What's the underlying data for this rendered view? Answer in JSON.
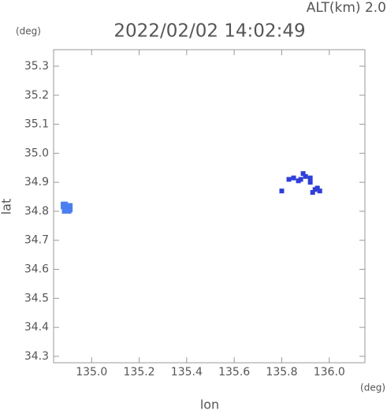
{
  "chart_data": {
    "type": "scatter",
    "title": "2022/02/02 14:02:49",
    "subtitle": "ALT(km) 2.0",
    "x_label": "lon",
    "y_label": "lat",
    "x_unit": "(deg)",
    "y_unit": "(deg)",
    "xlim": [
      134.84,
      136.15
    ],
    "ylim": [
      34.278,
      35.357
    ],
    "xticks": [
      {
        "value": 135.0,
        "label": "135.0"
      },
      {
        "value": 135.2,
        "label": "135.2"
      },
      {
        "value": 135.4,
        "label": "135.4"
      },
      {
        "value": 135.6,
        "label": "135.6"
      },
      {
        "value": 135.8,
        "label": "135.8"
      },
      {
        "value": 136.0,
        "label": "136.0"
      }
    ],
    "yticks": [
      {
        "value": 34.3,
        "label": "34.3"
      },
      {
        "value": 34.4,
        "label": "34.4"
      },
      {
        "value": 34.5,
        "label": "34.5"
      },
      {
        "value": 34.6,
        "label": "34.6"
      },
      {
        "value": 34.7,
        "label": "34.7"
      },
      {
        "value": 34.8,
        "label": "34.8"
      },
      {
        "value": 34.9,
        "label": "34.9"
      },
      {
        "value": 35.0,
        "label": "35.0"
      },
      {
        "value": 35.1,
        "label": "35.1"
      },
      {
        "value": 35.2,
        "label": "35.2"
      },
      {
        "value": 35.3,
        "label": "35.3"
      }
    ],
    "series": [
      {
        "color": "#4a7ff0",
        "x": [
          134.88,
          134.89,
          134.9,
          134.91,
          134.88,
          134.89,
          134.9,
          134.91,
          134.885,
          134.905
        ],
        "y": [
          34.825,
          34.825,
          34.82,
          34.82,
          34.815,
          34.81,
          34.81,
          34.805,
          34.8,
          34.8
        ]
      },
      {
        "color": "#2f3fd8",
        "x": [
          135.83,
          135.85,
          135.87,
          135.88,
          135.89,
          135.9,
          135.92,
          135.92,
          135.94,
          135.95,
          135.96,
          135.93,
          135.8
        ],
        "y": [
          34.91,
          34.915,
          34.905,
          34.91,
          34.93,
          34.92,
          34.915,
          34.9,
          34.875,
          34.88,
          34.87,
          34.865,
          34.87
        ]
      }
    ]
  }
}
